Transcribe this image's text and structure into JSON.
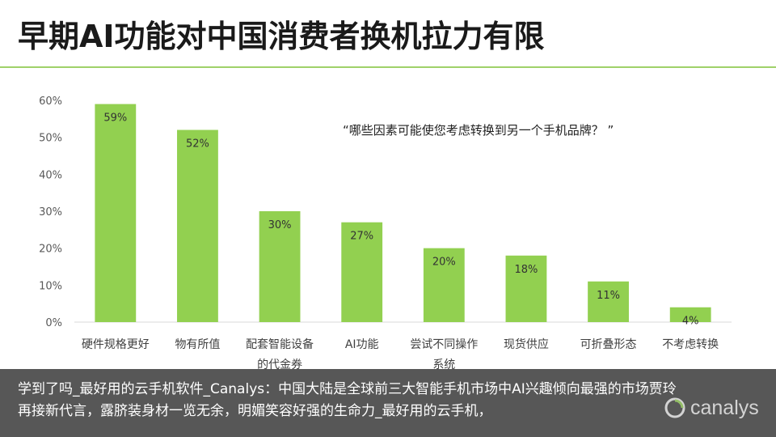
{
  "title": "早期AI功能对中国消费者换机拉力有限",
  "quote": "“哪些因素可能使您考虑转换到另一个手机品牌？  ”",
  "overlay_text": "学到了吗_最好用的云手机软件_Canalys：中国大陆是全球前三大智能手机市场中AI兴趣倾向最强的市场贾玲再接新代言，露脐装身材一览无余，明媚笑容好强的生命力_最好用的云手机，",
  "logo_text": "canalys",
  "colors": {
    "bar": "#92d050",
    "accent_rule": "#9fd16a",
    "axis": "#d9d9d9"
  },
  "chart_data": {
    "type": "bar",
    "categories": [
      "硬件规格更好",
      "物有所值",
      "配套智能设备的代金券",
      "AI功能",
      "尝试不同操作系统",
      "现货供应",
      "可折叠形态",
      "不考虑转换"
    ],
    "values": [
      59,
      52,
      30,
      27,
      20,
      18,
      11,
      4
    ],
    "data_labels": [
      "59%",
      "52%",
      "30%",
      "27%",
      "20%",
      "18%",
      "11%",
      "4%"
    ],
    "y_ticks": [
      "0%",
      "10%",
      "20%",
      "30%",
      "40%",
      "50%",
      "60%"
    ],
    "ylim": [
      0,
      60
    ],
    "grid": false,
    "xlabel": "",
    "ylabel": ""
  }
}
